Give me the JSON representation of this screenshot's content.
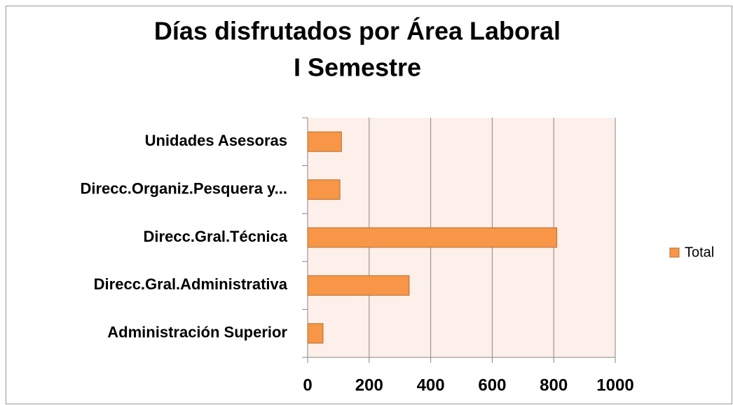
{
  "chart_data": {
    "type": "bar",
    "orientation": "horizontal",
    "title": "Días disfrutados por Área Laboral",
    "subtitle": "I Semestre",
    "categories": [
      "Unidades Asesoras",
      "Direcc.Organiz.Pesquera y...",
      "Direcc.Gral.Técnica",
      "Direcc.Gral.Administrativa",
      "Administración Superior"
    ],
    "series": [
      {
        "name": "Total",
        "color": "#f79646",
        "values": [
          110,
          105,
          810,
          330,
          50
        ]
      }
    ],
    "xlim": [
      0,
      1000
    ],
    "xticks": [
      0,
      200,
      400,
      600,
      800,
      1000
    ],
    "grid": true,
    "legend": "right"
  }
}
